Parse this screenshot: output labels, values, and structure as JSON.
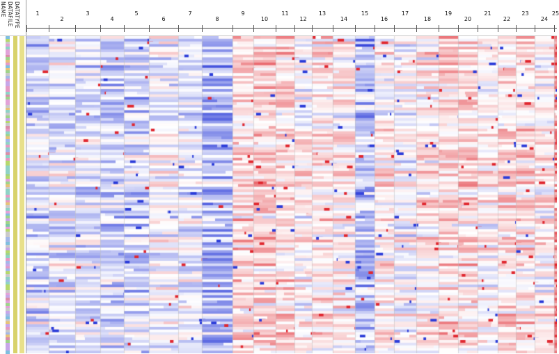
{
  "track_headers": [
    "NAME",
    "DATAFILE",
    "DATATYPE"
  ],
  "chromosomes": [
    "1",
    "2",
    "3",
    "4",
    "5",
    "6",
    "7",
    "8",
    "9",
    "10",
    "11",
    "12",
    "13",
    "14",
    "15",
    "16",
    "17",
    "18",
    "19",
    "20",
    "21",
    "22",
    "23",
    "24",
    "25"
  ],
  "colors": {
    "loss": "#2a3bd9",
    "gain": "#e0262e",
    "neutral": "#ffffff",
    "datafile": "#d8d26a",
    "datatype": "#e8e08a"
  },
  "heatmap": {
    "sample_count": 120,
    "color_scale": "blue-white-red",
    "description_of_pattern": ""
  }
}
